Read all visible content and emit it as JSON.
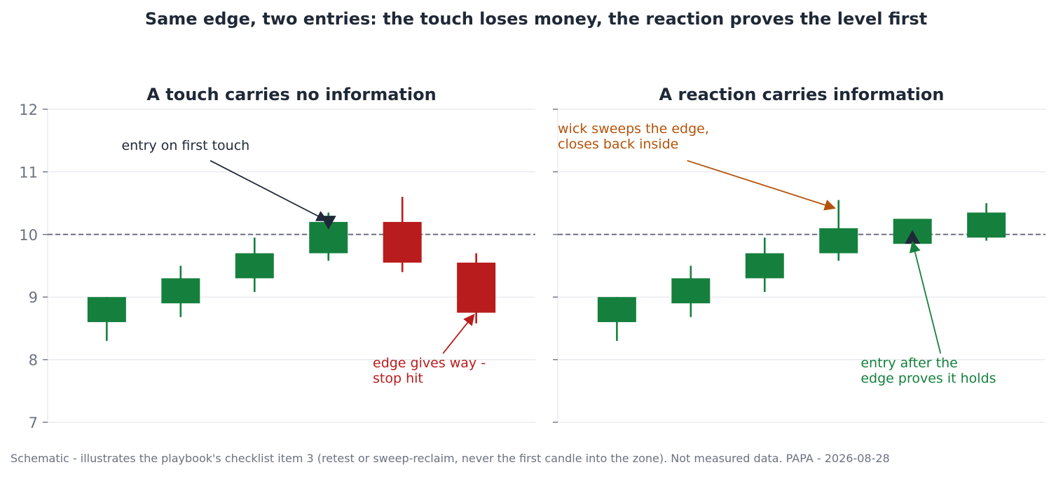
{
  "title": "Same edge, two entries: the touch loses money, the reaction proves the level first",
  "footer": "Schematic - illustrates the playbook's checklist item 3 (retest or sweep-reclaim, never the first candle into the zone). Not measured data. PAPA - 2026-08-28",
  "colors": {
    "up": "#15803d",
    "down": "#b91c1c",
    "level": "#6b7280",
    "grid": "#e5e7eb",
    "dark": "#1f2937",
    "orange": "#b45309"
  },
  "chart_data": [
    {
      "type": "candlestick",
      "title": "A touch carries no information",
      "ylim": [
        7,
        12
      ],
      "yticks": [
        7,
        8,
        9,
        10,
        11,
        12
      ],
      "grid": true,
      "level": 10,
      "candles": [
        {
          "x": 1,
          "open": 8.6,
          "close": 9.0,
          "high": 9.0,
          "low": 8.3,
          "dir": "up"
        },
        {
          "x": 2,
          "open": 8.9,
          "close": 9.3,
          "high": 9.5,
          "low": 8.68,
          "dir": "up"
        },
        {
          "x": 3,
          "open": 9.3,
          "close": 9.7,
          "high": 9.95,
          "low": 9.08,
          "dir": "up"
        },
        {
          "x": 4,
          "open": 9.7,
          "close": 10.2,
          "high": 10.35,
          "low": 9.58,
          "dir": "up"
        },
        {
          "x": 5,
          "open": 10.2,
          "close": 9.55,
          "high": 10.6,
          "low": 9.4,
          "dir": "down"
        },
        {
          "x": 6,
          "open": 9.55,
          "close": 8.75,
          "high": 9.7,
          "low": 8.58,
          "dir": "down"
        }
      ],
      "markers": [
        {
          "x": 4,
          "y": 10.2,
          "shape": "triangle-down",
          "color": "dark"
        }
      ],
      "annotations": [
        {
          "lines": [
            "entry on first touch"
          ],
          "color": "dark",
          "text_x": 1.2,
          "text_y": 11.35,
          "arrow_from": [
            2.4,
            11.18
          ],
          "arrow_to": [
            3.98,
            10.22
          ]
        },
        {
          "lines": [
            "edge gives way -",
            "stop hit"
          ],
          "color": "down",
          "text_x": 4.6,
          "text_y": 7.88,
          "arrow_from": [
            5.55,
            8.1
          ],
          "arrow_to": [
            5.97,
            8.72
          ]
        }
      ]
    },
    {
      "type": "candlestick",
      "title": "A reaction carries information",
      "ylim": [
        7,
        12
      ],
      "yticks": [
        7,
        8,
        9,
        10,
        11,
        12
      ],
      "grid": true,
      "level": 10,
      "candles": [
        {
          "x": 1,
          "open": 8.6,
          "close": 9.0,
          "high": 9.0,
          "low": 8.3,
          "dir": "up"
        },
        {
          "x": 2,
          "open": 8.9,
          "close": 9.3,
          "high": 9.5,
          "low": 8.68,
          "dir": "up"
        },
        {
          "x": 3,
          "open": 9.3,
          "close": 9.7,
          "high": 9.95,
          "low": 9.08,
          "dir": "up"
        },
        {
          "x": 4,
          "open": 9.7,
          "close": 10.1,
          "high": 10.55,
          "low": 9.58,
          "dir": "up"
        },
        {
          "x": 5,
          "open": 9.85,
          "close": 10.25,
          "high": 10.25,
          "low": 9.73,
          "dir": "up"
        },
        {
          "x": 6,
          "open": 9.95,
          "close": 10.35,
          "high": 10.5,
          "low": 9.9,
          "dir": "up"
        }
      ],
      "markers": [
        {
          "x": 5,
          "y": 9.95,
          "shape": "triangle-up",
          "color": "dark"
        }
      ],
      "annotations": [
        {
          "lines": [
            "wick sweeps the edge,",
            "closes back inside"
          ],
          "color": "orange",
          "text_x": 0.2,
          "text_y": 11.62,
          "arrow_from": [
            1.95,
            11.18
          ],
          "arrow_to": [
            3.95,
            10.42
          ]
        },
        {
          "lines": [
            "entry after the",
            "edge proves it holds"
          ],
          "color": "up",
          "text_x": 4.3,
          "text_y": 7.88,
          "arrow_from": [
            5.38,
            8.1
          ],
          "arrow_to": [
            5.0,
            9.88
          ]
        }
      ]
    }
  ]
}
